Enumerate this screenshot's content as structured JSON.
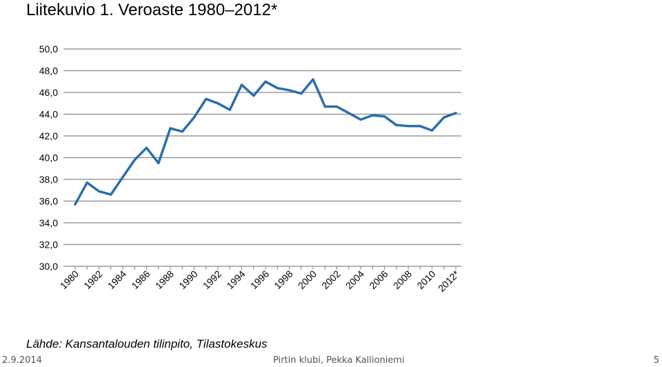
{
  "slide": {
    "title": "Liitekuvio 1. Veroaste 1980–2012*",
    "source": "Lähde: Kansantalouden tilinpito, Tilastokeskus",
    "footer_date": "2.9.2014",
    "footer_center": "Pirtin klubi, Pekka Kallioniemi",
    "page_number": "5"
  },
  "chart_data": {
    "type": "line",
    "title": "Liitekuvio 1. Veroaste 1980–2012*",
    "xlabel": "",
    "ylabel": "",
    "categories": [
      "1980",
      "1981",
      "1982",
      "1983",
      "1984",
      "1985",
      "1986",
      "1987",
      "1988",
      "1989",
      "1990",
      "1991",
      "1992",
      "1993",
      "1994",
      "1995",
      "1996",
      "1997",
      "1998",
      "1999",
      "2000",
      "2001",
      "2002",
      "2003",
      "2004",
      "2005",
      "2006",
      "2007",
      "2008",
      "2009",
      "2010",
      "2011",
      "2012*"
    ],
    "x_tick_labels": [
      "1980",
      "1982",
      "1984",
      "1986",
      "1988",
      "1990",
      "1992",
      "1994",
      "1996",
      "1998",
      "2000",
      "2002",
      "2004",
      "2006",
      "2008",
      "2010",
      "2012*"
    ],
    "series": [
      {
        "values": [
          35.7,
          37.7,
          36.9,
          36.6,
          38.2,
          39.8,
          40.9,
          39.5,
          42.7,
          42.4,
          43.7,
          45.4,
          45.0,
          44.4,
          46.7,
          45.7,
          47.0,
          46.4,
          46.2,
          45.9,
          47.2,
          44.7,
          44.7,
          44.1,
          43.5,
          43.9,
          43.8,
          43.0,
          42.9,
          42.9,
          42.5,
          43.7,
          44.1
        ]
      }
    ],
    "ylim": [
      30,
      50
    ],
    "y_tick_labels": [
      "30,0",
      "32,0",
      "34,0",
      "36,0",
      "38,0",
      "40,0",
      "42,0",
      "44,0",
      "46,0",
      "48,0",
      "50,0"
    ],
    "y_ticks": [
      30,
      32,
      34,
      36,
      38,
      40,
      42,
      44,
      46,
      48,
      50
    ],
    "grid": true,
    "legend": "none",
    "line_color": "#2a6ead",
    "grid_color": "#868686"
  }
}
